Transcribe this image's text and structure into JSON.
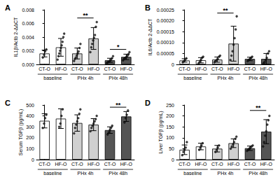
{
  "chart_data": [
    {
      "type": "bar",
      "title": "A",
      "y_label": "IL1β/Actb 2-ΔΔCT",
      "categories": [
        "CT-O",
        "HF-O",
        "CT-O",
        "HF-O",
        "CT-O",
        "HF-O"
      ],
      "category_groups": [
        "baseline",
        "baseline",
        "PHx 4h",
        "PHx 4h",
        "PHx 48h",
        "PHx 48h"
      ],
      "values": [
        0.0016,
        0.0025,
        0.0016,
        0.0038,
        0.0006,
        0.0011
      ],
      "errors": [
        0.0005,
        0.0013,
        0.0008,
        0.0016,
        0.0003,
        0.0004
      ],
      "colors": [
        "#ffffff",
        "#ffffff",
        "#d0d0d0",
        "#d0d0d0",
        "#555555",
        "#555555"
      ],
      "points": [
        [
          0.001,
          0.0014,
          0.0019,
          0.0022
        ],
        [
          0.0007,
          0.0012,
          0.0016,
          0.002,
          0.0024,
          0.0028,
          0.0033,
          0.004,
          0.0045
        ],
        [
          0.0005,
          0.0008,
          0.001,
          0.0013,
          0.0016,
          0.0019,
          0.0024,
          0.003
        ],
        [
          0.0018,
          0.0025,
          0.003,
          0.0035,
          0.0039,
          0.0043,
          0.0055,
          0.0062
        ],
        [
          0.0002,
          0.0003,
          0.0004,
          0.0005,
          0.0007,
          0.0009,
          0.0012
        ],
        [
          0.0006,
          0.0008,
          0.0009,
          0.001,
          0.0011,
          0.0013,
          0.0015,
          0.0018
        ]
      ],
      "marker": "circle",
      "annotations": [
        {
          "text": "**",
          "from": 2,
          "to": 3,
          "y": 0.0068
        },
        {
          "text": "*",
          "from": 4,
          "to": 5,
          "y": 0.0022
        }
      ],
      "ylim": [
        0,
        0.008
      ],
      "yticks": [
        {
          "value": 0,
          "label": "0.000"
        },
        0.002,
        0.004,
        0.006,
        0.008
      ],
      "grid": false
    },
    {
      "type": "bar",
      "title": "B",
      "y_label": "IL6/Actb 2-ΔΔCT",
      "categories": [
        "CT-O",
        "HF-O",
        "CT-O",
        "HF-O",
        "CT-O",
        "HF-O"
      ],
      "category_groups": [
        "baseline",
        "baseline",
        "PHx 4h",
        "PHx 4h",
        "PHx 48h",
        "PHx 48h"
      ],
      "values": [
        1.8e-05,
        1.9e-05,
        2.2e-05,
        9.5e-05,
        2.5e-05,
        2.5e-05
      ],
      "errors": [
        8e-06,
        1.2e-05,
        1.2e-05,
        8e-05,
        8e-06,
        2.5e-05
      ],
      "colors": [
        "#ffffff",
        "#ffffff",
        "#d0d0d0",
        "#d0d0d0",
        "#555555",
        "#555555"
      ],
      "points": [
        [
          1e-05,
          1.5e-05,
          2e-05,
          2.8e-05
        ],
        [
          5e-06,
          1.2e-05,
          2e-05,
          3e-05,
          3.5e-05
        ],
        [
          1e-05,
          1.5e-05,
          2e-05,
          2.5e-05,
          3.5e-05,
          4e-05
        ],
        [
          2e-05,
          4e-05,
          6e-05,
          9e-05,
          0.00012,
          0.00016,
          0.00022
        ],
        [
          1.5e-05,
          2e-05,
          2.5e-05,
          3e-05,
          3.5e-05
        ],
        [
          5e-06,
          1e-05,
          2e-05,
          3e-05,
          5e-05,
          6e-05
        ]
      ],
      "marker": "circle",
      "annotations": [
        {
          "text": "**",
          "from": 2,
          "to": 3,
          "y": 0.000235
        }
      ],
      "ylim": [
        0,
        0.00025
      ],
      "yticks": [
        0,
        5e-05,
        {
          "value": 0.0001,
          "label": "0.00010"
        },
        0.00015,
        {
          "value": 0.0002,
          "label": "0.00020"
        },
        0.00025
      ],
      "grid": false
    },
    {
      "type": "bar",
      "title": "C",
      "y_label": "Serum TGFβ (pg/mL)",
      "categories": [
        "CT-O",
        "HF-O",
        "CT-O",
        "HF-O",
        "CT-O",
        "HF-O"
      ],
      "category_groups": [
        "baseline",
        "baseline",
        "PHx 4h",
        "PHx 4h",
        "PHx 48h",
        "PHx 48h"
      ],
      "values": [
        355,
        375,
        335,
        320,
        270,
        395
      ],
      "errors": [
        65,
        90,
        75,
        55,
        30,
        45
      ],
      "colors": [
        "#ffffff",
        "#ffffff",
        "#d0d0d0",
        "#d0d0d0",
        "#555555",
        "#555555"
      ],
      "points": [
        [
          290,
          330,
          380,
          410
        ],
        [
          300,
          330,
          400,
          460
        ],
        [
          240,
          290,
          320,
          350,
          380,
          420,
          460
        ],
        [
          260,
          290,
          310,
          330,
          350,
          370,
          400
        ],
        [
          230,
          250,
          270,
          290,
          310
        ],
        [
          340,
          380,
          410,
          450
        ]
      ],
      "marker": "circle",
      "annotations": [
        {
          "text": "**",
          "from": 4,
          "to": 5,
          "y": 480
        }
      ],
      "ylim": [
        0,
        500
      ],
      "yticks": [
        0,
        100,
        200,
        300,
        400,
        500
      ],
      "grid": false
    },
    {
      "type": "bar",
      "title": "D",
      "y_label": "Liver TGFβ (pg/mL)",
      "categories": [
        "CT-O",
        "HF-O",
        "CT-O",
        "HF-O",
        "CT-O",
        "HF-O"
      ],
      "category_groups": [
        "baseline",
        "baseline",
        "PHx 4h",
        "PHx 4h",
        "PHx 48h",
        "PHx 48h"
      ],
      "values": [
        45,
        60,
        50,
        75,
        52,
        128
      ],
      "errors": [
        22,
        15,
        15,
        20,
        10,
        55
      ],
      "colors": [
        "#ffffff",
        "#ffffff",
        "#d0d0d0",
        "#d0d0d0",
        "#555555",
        "#555555"
      ],
      "points": [
        [
          20,
          35,
          45,
          55,
          80
        ],
        [
          45,
          55,
          65,
          75
        ],
        [
          35,
          45,
          55,
          65
        ],
        [
          50,
          60,
          70,
          80,
          95,
          105
        ],
        [
          40,
          45,
          50,
          55,
          60,
          65
        ],
        [
          60,
          80,
          110,
          130,
          160,
          180,
          200
        ]
      ],
      "marker": "circle",
      "annotations": [
        {
          "text": "**",
          "from": 4,
          "to": 5,
          "y": 225
        }
      ],
      "ylim": [
        0,
        250
      ],
      "yticks": [
        0,
        50,
        100,
        150,
        200,
        250
      ],
      "grid": false
    }
  ]
}
